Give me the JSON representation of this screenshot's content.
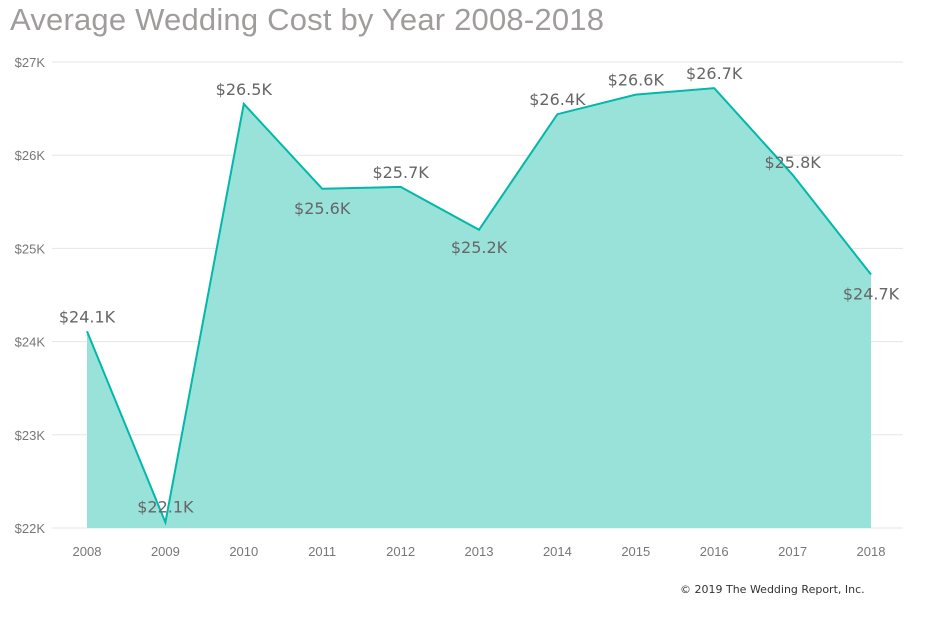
{
  "chart_data": {
    "type": "area",
    "title": "Average Wedding Cost by Year 2008-2018",
    "xlabel": "",
    "ylabel": "",
    "categories": [
      "2008",
      "2009",
      "2010",
      "2011",
      "2012",
      "2013",
      "2014",
      "2015",
      "2016",
      "2017",
      "2018"
    ],
    "values": [
      24.11,
      22.06,
      26.55,
      25.64,
      25.66,
      25.2,
      26.44,
      26.65,
      26.72,
      25.79,
      24.72
    ],
    "data_labels": [
      "$24.1K",
      "$22.1K",
      "$26.5K",
      "$25.6K",
      "$25.7K",
      "$25.2K",
      "$26.4K",
      "$26.6K",
      "$26.7K",
      "$25.8K",
      "$24.7K"
    ],
    "ylim": [
      22,
      27
    ],
    "y_unit": "thousands USD",
    "y_ticks": [
      22,
      23,
      24,
      25,
      26,
      27
    ],
    "y_tick_labels": [
      "$22K",
      "$23K",
      "$24K",
      "$25K",
      "$26K",
      "$27K"
    ],
    "grid": true,
    "legend": "none",
    "colors": {
      "line": "#01b8aa",
      "fill": "#99e2da",
      "grid": "#e6e6e6"
    }
  },
  "footer": {
    "copyright": "© 2019 The Wedding Report, Inc."
  }
}
